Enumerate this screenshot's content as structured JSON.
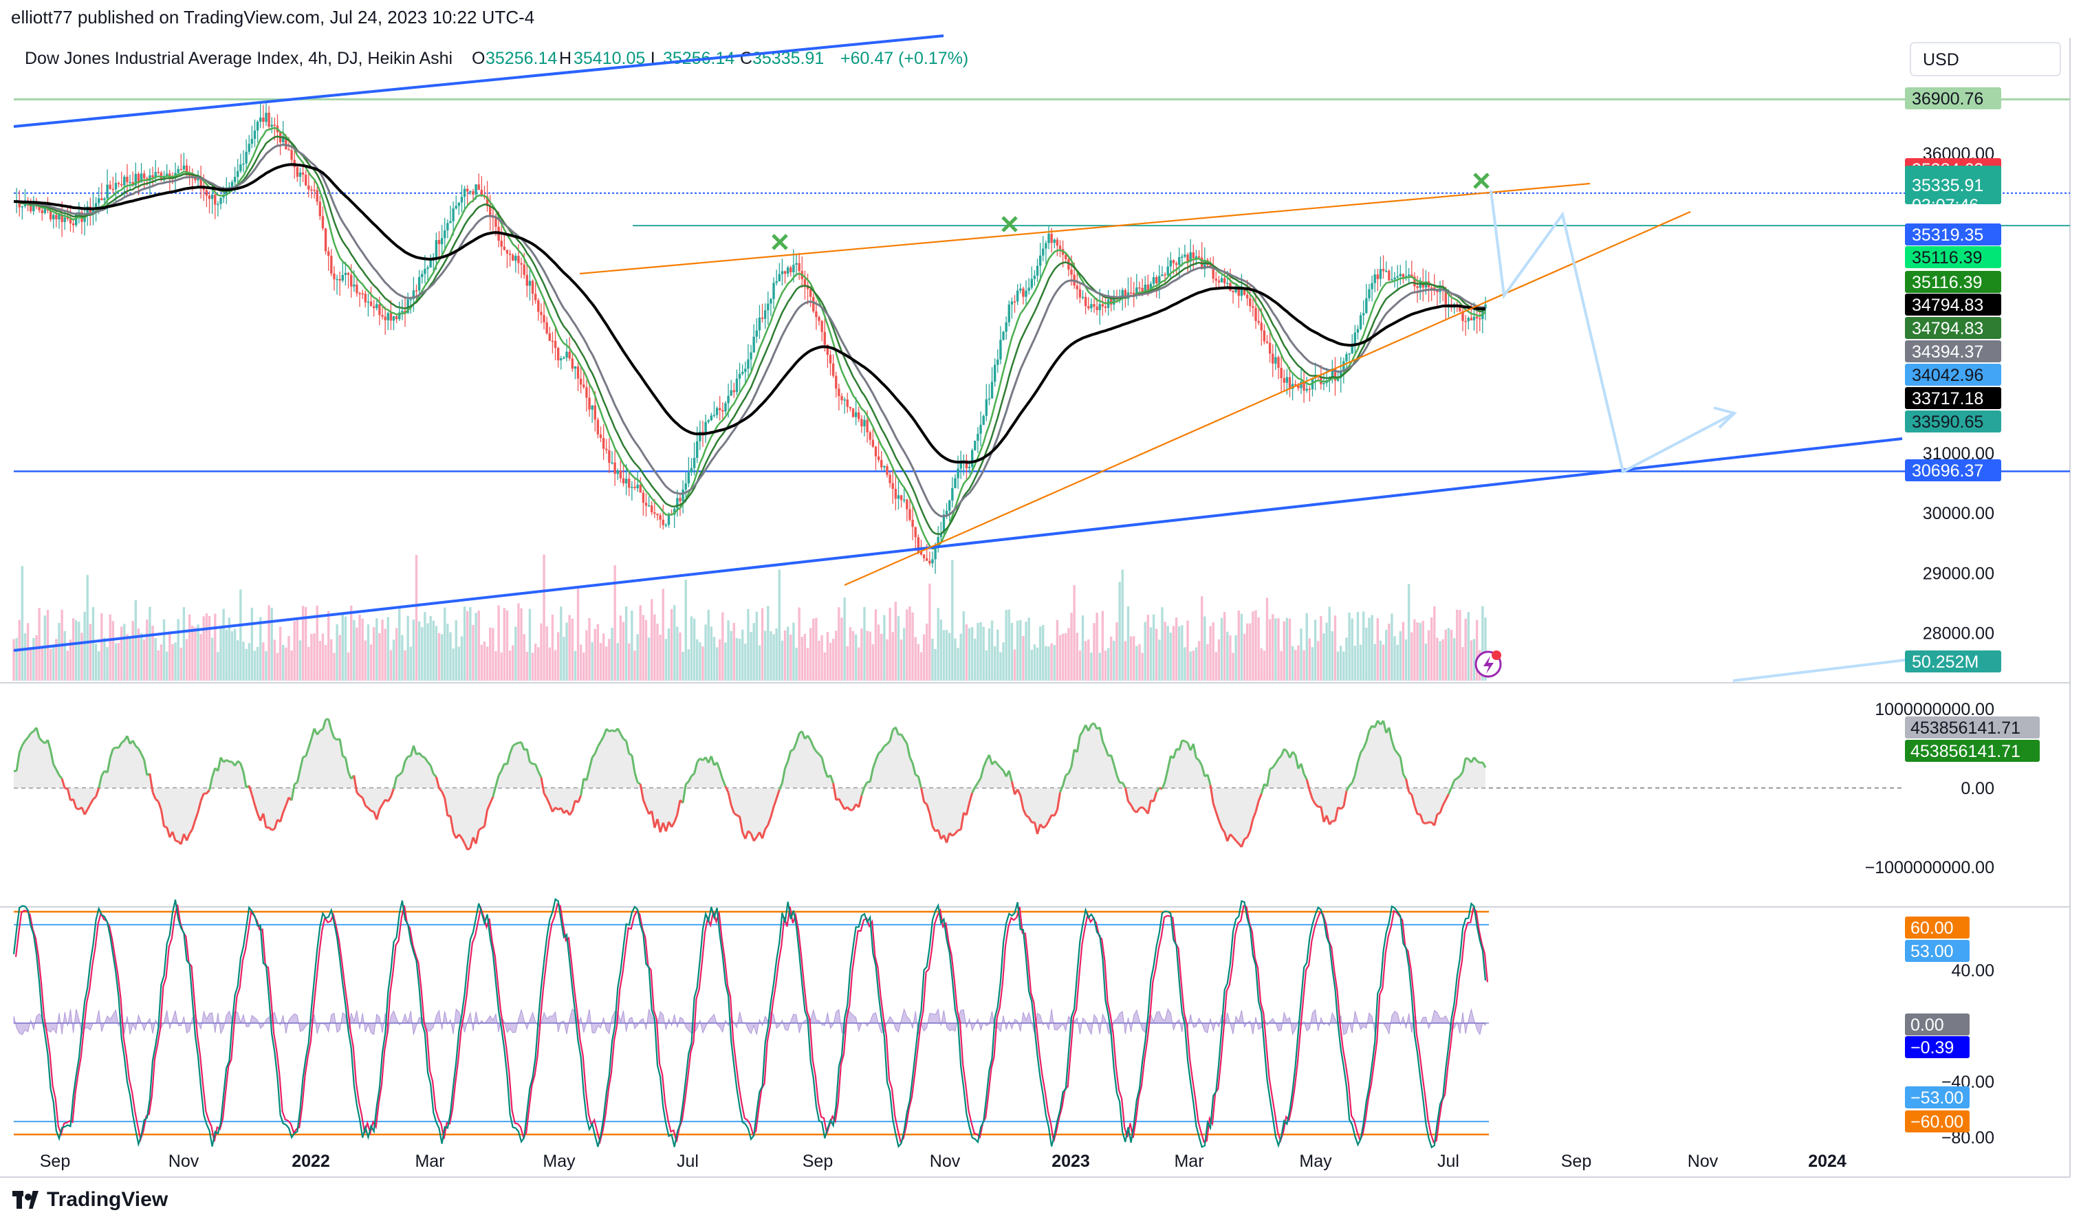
{
  "header": {
    "published": "elliott77 published on TradingView.com, Jul 24, 2023 10:22 UTC-4"
  },
  "brand": {
    "name": "TradingView"
  },
  "chart_data": [
    {
      "type": "candlestick",
      "symbol_title": "Dow Jones Industrial Average Index, 4h, DJ, Heikin Ashi",
      "ohlc": {
        "open_label": "O",
        "open": "35256.14",
        "high_label": "H",
        "high": "35410.05",
        "low_label": "L",
        "low": "35256.14",
        "close_label": "C",
        "close": "35335.91",
        "change": "+60.47 (+0.17%)"
      },
      "currency": "USD",
      "ylim": [
        27000,
        37300
      ],
      "y_ticks": [
        "36000.00",
        "31000.00",
        "30000.00",
        "29000.00",
        "28000.00"
      ],
      "x_ticks": [
        "Sep",
        "Nov",
        "2022",
        "Mar",
        "May",
        "Jul",
        "Sep",
        "Nov",
        "2023",
        "Mar",
        "May",
        "Jul",
        "Sep",
        "Nov",
        "2024"
      ],
      "price_badges": [
        {
          "value": "36900.76",
          "color": "#a5d6a7",
          "text_color": "#131722"
        },
        {
          "value": "35384.63",
          "color": "#f23645",
          "text_color": "#ffffff"
        },
        {
          "value": "35335.91",
          "color": "#22ab94",
          "text_color": "#ffffff",
          "sub": "03:07:46"
        },
        {
          "value": "35319.35",
          "color": "#2962ff",
          "text_color": "#ffffff"
        },
        {
          "value": "35116.39",
          "color": "#00e676",
          "text_color": "#131722"
        },
        {
          "value": "35116.39",
          "color": "#1b8a1b",
          "text_color": "#ffffff"
        },
        {
          "value": "34794.83",
          "color": "#000000",
          "text_color": "#ffffff"
        },
        {
          "value": "34794.83",
          "color": "#2e7d32",
          "text_color": "#ffffff"
        },
        {
          "value": "34394.37",
          "color": "#787b86",
          "text_color": "#ffffff"
        },
        {
          "value": "34042.96",
          "color": "#42a5f5",
          "text_color": "#131722"
        },
        {
          "value": "33717.18",
          "color": "#000000",
          "text_color": "#ffffff"
        },
        {
          "value": "33590.65",
          "color": "#26a69a",
          "text_color": "#131722"
        },
        {
          "value": "30696.37",
          "color": "#2962ff",
          "text_color": "#ffffff"
        },
        {
          "value": "50.252M",
          "color": "#26a69a",
          "text_color": "#ffffff"
        }
      ],
      "horizontal_levels": [
        36900.76,
        35335.91,
        34794.83,
        30696.37
      ],
      "trendlines": {
        "wedge_upper": [
          [
            34200,
            "2022-05"
          ],
          [
            35380,
            "2023-08"
          ]
        ],
        "wedge_lower": [
          [
            28900,
            "2022-09"
          ],
          [
            35700,
            "2023-10"
          ]
        ],
        "channel": [
          [
            28060,
            "2021-08"
          ],
          [
            31280,
            "2024-01"
          ]
        ]
      },
      "x_markers": [
        {
          "label": "2022-08 high",
          "y": 34170
        },
        {
          "label": "2022-11 high",
          "y": 34480
        },
        {
          "label": "2023-07 high",
          "y": 35580
        }
      ],
      "projection_path": [
        35320,
        34800,
        35100,
        30700,
        33590
      ]
    },
    {
      "type": "area",
      "name": "oscillator",
      "y_ticks": [
        "1000000000.00",
        "0.00",
        "−1000000000.00"
      ],
      "last_value": "453856141.71",
      "badges": [
        {
          "value": "453856141.71",
          "color": "#b2b5be",
          "text_color": "#131722"
        },
        {
          "value": "453856141.71",
          "color": "#1b8a1b",
          "text_color": "#ffffff"
        }
      ]
    },
    {
      "type": "line",
      "name": "stochastic-like oscillator",
      "y_ticks": [
        "40.00",
        "−40.00",
        "−80.00"
      ],
      "levels": [
        60,
        53,
        -53,
        -60
      ],
      "badges": [
        {
          "value": "60.00",
          "color": "#f57c00",
          "text_color": "#ffffff"
        },
        {
          "value": "53.00",
          "color": "#42a5f5",
          "text_color": "#ffffff"
        },
        {
          "value": "0.00",
          "color": "#787b86",
          "text_color": "#ffffff"
        },
        {
          "value": "−0.39",
          "color": "#0000ff",
          "text_color": "#ffffff"
        },
        {
          "value": "−53.00",
          "color": "#42a5f5",
          "text_color": "#ffffff"
        },
        {
          "value": "−60.00",
          "color": "#f57c00",
          "text_color": "#ffffff"
        }
      ]
    }
  ]
}
